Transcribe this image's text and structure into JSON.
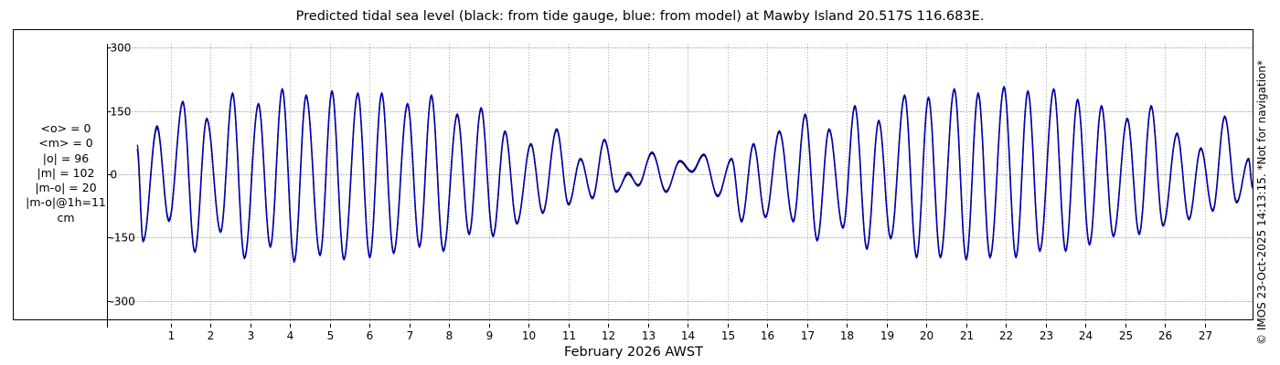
{
  "chart_data": {
    "type": "line",
    "title": "Predicted tidal sea level (black: from tide gauge, blue: from model) at Mawby Island 20.517S 116.683E.",
    "xlabel": "February 2026 AWST",
    "ylabel": "",
    "xlim": [
      0.15,
      28.2
    ],
    "ylim": [
      -320,
      320
    ],
    "x_ticks": [
      "1",
      "2",
      "3",
      "4",
      "5",
      "6",
      "7",
      "8",
      "9",
      "10",
      "11",
      "12",
      "13",
      "14",
      "15",
      "16",
      "17",
      "18",
      "19",
      "20",
      "21",
      "22",
      "23",
      "24",
      "25",
      "26",
      "27"
    ],
    "y_ticks": [
      {
        "value": 300,
        "label": "300"
      },
      {
        "value": 150,
        "label": "150"
      },
      {
        "value": 0,
        "label": "0"
      },
      {
        "value": -150,
        "label": "-150"
      },
      {
        "value": -300,
        "label": "-300"
      }
    ],
    "grid": true,
    "units": "cm",
    "series": [
      {
        "color": "#000000",
        "extrema": [
          [
            0.15,
            60
          ],
          [
            0.3,
            -158
          ],
          [
            0.65,
            110
          ],
          [
            0.95,
            -108
          ],
          [
            1.3,
            170
          ],
          [
            1.6,
            -183
          ],
          [
            1.9,
            130
          ],
          [
            2.25,
            -135
          ],
          [
            2.55,
            190
          ],
          [
            2.85,
            -197
          ],
          [
            3.2,
            165
          ],
          [
            3.5,
            -170
          ],
          [
            3.8,
            200
          ],
          [
            4.1,
            -205
          ],
          [
            4.4,
            185
          ],
          [
            4.75,
            -190
          ],
          [
            5.05,
            195
          ],
          [
            5.35,
            -200
          ],
          [
            5.7,
            190
          ],
          [
            6.0,
            -195
          ],
          [
            6.3,
            190
          ],
          [
            6.6,
            -185
          ],
          [
            6.95,
            165
          ],
          [
            7.25,
            -170
          ],
          [
            7.55,
            185
          ],
          [
            7.85,
            -180
          ],
          [
            8.2,
            140
          ],
          [
            8.5,
            -140
          ],
          [
            8.8,
            155
          ],
          [
            9.1,
            -145
          ],
          [
            9.4,
            100
          ],
          [
            9.7,
            -115
          ],
          [
            10.05,
            70
          ],
          [
            10.35,
            -90
          ],
          [
            10.7,
            105
          ],
          [
            11.0,
            -70
          ],
          [
            11.3,
            35
          ],
          [
            11.6,
            -55
          ],
          [
            11.9,
            80
          ],
          [
            12.2,
            -40
          ],
          [
            12.5,
            0
          ],
          [
            12.75,
            -25
          ],
          [
            13.1,
            50
          ],
          [
            13.45,
            -40
          ],
          [
            13.8,
            30
          ],
          [
            14.1,
            5
          ],
          [
            14.4,
            45
          ],
          [
            14.75,
            -50
          ],
          [
            15.1,
            35
          ],
          [
            15.35,
            -110
          ],
          [
            15.65,
            70
          ],
          [
            15.95,
            -100
          ],
          [
            16.3,
            100
          ],
          [
            16.65,
            -110
          ],
          [
            16.95,
            140
          ],
          [
            17.25,
            -155
          ],
          [
            17.55,
            105
          ],
          [
            17.9,
            -125
          ],
          [
            18.2,
            160
          ],
          [
            18.5,
            -175
          ],
          [
            18.8,
            125
          ],
          [
            19.1,
            -150
          ],
          [
            19.45,
            185
          ],
          [
            19.75,
            -195
          ],
          [
            20.05,
            180
          ],
          [
            20.35,
            -195
          ],
          [
            20.7,
            200
          ],
          [
            21.0,
            -200
          ],
          [
            21.3,
            190
          ],
          [
            21.6,
            -195
          ],
          [
            21.95,
            205
          ],
          [
            22.25,
            -195
          ],
          [
            22.55,
            195
          ],
          [
            22.85,
            -180
          ],
          [
            23.2,
            200
          ],
          [
            23.5,
            -180
          ],
          [
            23.8,
            175
          ],
          [
            24.1,
            -165
          ],
          [
            24.4,
            160
          ],
          [
            24.7,
            -145
          ],
          [
            25.05,
            130
          ],
          [
            25.35,
            -140
          ],
          [
            25.65,
            160
          ],
          [
            25.95,
            -120
          ],
          [
            26.3,
            95
          ],
          [
            26.6,
            -105
          ],
          [
            26.9,
            60
          ],
          [
            27.2,
            -85
          ],
          [
            27.5,
            135
          ],
          [
            27.8,
            -65
          ],
          [
            28.1,
            35
          ],
          [
            28.2,
            -30
          ]
        ]
      },
      {
        "color": "#0000cc",
        "extrema": [
          [
            0.15,
            70
          ],
          [
            0.3,
            -160
          ],
          [
            0.65,
            115
          ],
          [
            0.95,
            -112
          ],
          [
            1.3,
            173
          ],
          [
            1.6,
            -185
          ],
          [
            1.9,
            133
          ],
          [
            2.25,
            -138
          ],
          [
            2.55,
            193
          ],
          [
            2.85,
            -200
          ],
          [
            3.2,
            168
          ],
          [
            3.5,
            -173
          ],
          [
            3.8,
            203
          ],
          [
            4.1,
            -208
          ],
          [
            4.4,
            188
          ],
          [
            4.75,
            -193
          ],
          [
            5.05,
            198
          ],
          [
            5.35,
            -203
          ],
          [
            5.7,
            193
          ],
          [
            6.0,
            -198
          ],
          [
            6.3,
            193
          ],
          [
            6.6,
            -188
          ],
          [
            6.95,
            168
          ],
          [
            7.25,
            -173
          ],
          [
            7.55,
            188
          ],
          [
            7.85,
            -183
          ],
          [
            8.2,
            143
          ],
          [
            8.5,
            -143
          ],
          [
            8.8,
            158
          ],
          [
            9.1,
            -148
          ],
          [
            9.4,
            103
          ],
          [
            9.7,
            -118
          ],
          [
            10.05,
            73
          ],
          [
            10.35,
            -93
          ],
          [
            10.7,
            108
          ],
          [
            11.0,
            -73
          ],
          [
            11.3,
            38
          ],
          [
            11.6,
            -58
          ],
          [
            11.9,
            83
          ],
          [
            12.2,
            -43
          ],
          [
            12.5,
            5
          ],
          [
            12.75,
            -28
          ],
          [
            13.1,
            53
          ],
          [
            13.45,
            -43
          ],
          [
            13.8,
            33
          ],
          [
            14.1,
            8
          ],
          [
            14.4,
            48
          ],
          [
            14.75,
            -53
          ],
          [
            15.1,
            38
          ],
          [
            15.35,
            -113
          ],
          [
            15.65,
            73
          ],
          [
            15.95,
            -103
          ],
          [
            16.3,
            103
          ],
          [
            16.65,
            -113
          ],
          [
            16.95,
            143
          ],
          [
            17.25,
            -158
          ],
          [
            17.55,
            108
          ],
          [
            17.9,
            -128
          ],
          [
            18.2,
            163
          ],
          [
            18.5,
            -178
          ],
          [
            18.8,
            128
          ],
          [
            19.1,
            -153
          ],
          [
            19.45,
            188
          ],
          [
            19.75,
            -198
          ],
          [
            20.05,
            183
          ],
          [
            20.35,
            -198
          ],
          [
            20.7,
            203
          ],
          [
            21.0,
            -203
          ],
          [
            21.3,
            193
          ],
          [
            21.6,
            -198
          ],
          [
            21.95,
            208
          ],
          [
            22.25,
            -198
          ],
          [
            22.55,
            198
          ],
          [
            22.85,
            -183
          ],
          [
            23.2,
            203
          ],
          [
            23.5,
            -183
          ],
          [
            23.8,
            178
          ],
          [
            24.1,
            -168
          ],
          [
            24.4,
            163
          ],
          [
            24.7,
            -148
          ],
          [
            25.05,
            133
          ],
          [
            25.35,
            -143
          ],
          [
            25.65,
            163
          ],
          [
            25.95,
            -123
          ],
          [
            26.3,
            98
          ],
          [
            26.6,
            -108
          ],
          [
            26.9,
            63
          ],
          [
            27.2,
            -88
          ],
          [
            27.5,
            138
          ],
          [
            27.8,
            -68
          ],
          [
            28.1,
            38
          ],
          [
            28.2,
            -33
          ]
        ]
      }
    ]
  },
  "stats": {
    "mean_obs": "<o> = 0",
    "mean_model": "<m> = 0",
    "abs_obs": "|o| = 96",
    "abs_model": "|m| = 102",
    "abs_diff": "|m-o| = 20",
    "abs_diff_1h": "|m-o|@1h=11",
    "unit": "cm"
  },
  "credit": "© IMOS 23-Oct-2025 14:13:15. *Not for navigation*"
}
